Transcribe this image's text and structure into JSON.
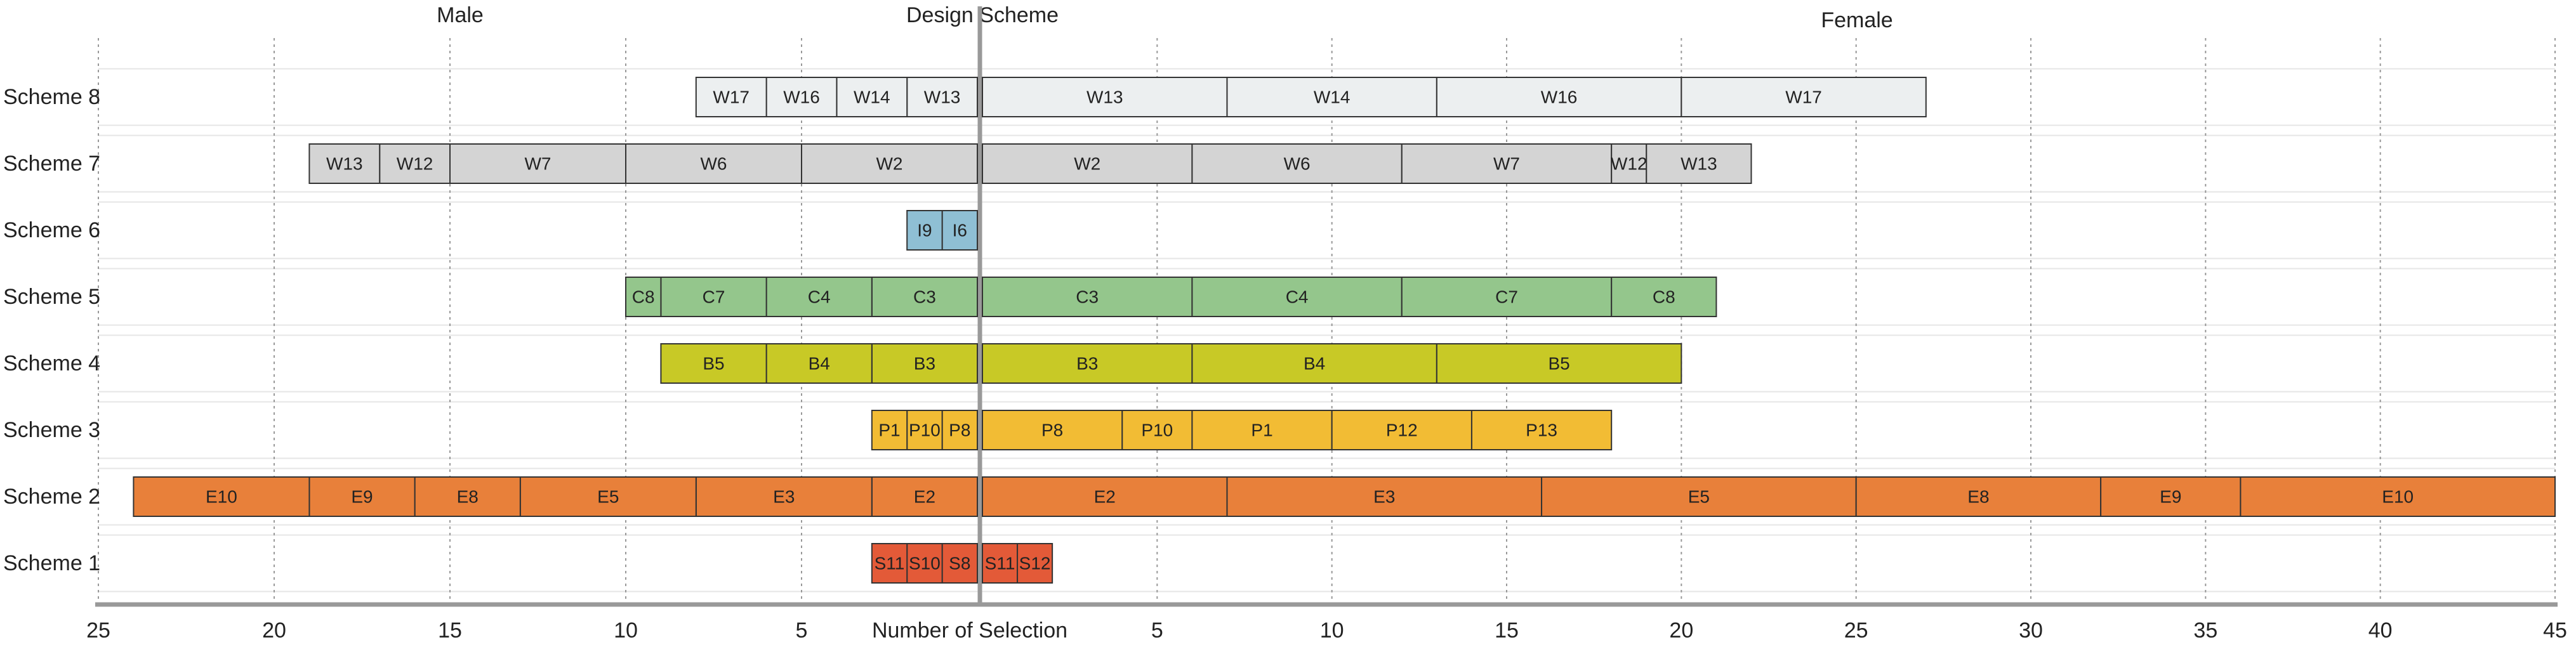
{
  "chart_data": {
    "type": "butterfly-stacked-bar",
    "title": "Design Scheme",
    "xlabel": "Number of Selection",
    "grid": true,
    "categories": [
      "Scheme 8",
      "Scheme 7",
      "Scheme 6",
      "Scheme 5",
      "Scheme 4",
      "Scheme 3",
      "Scheme 2",
      "Scheme 1"
    ],
    "colors": [
      "#eceff0",
      "#d4d4d4",
      "#8fbfd4",
      "#94c68c",
      "#c8c926",
      "#f2bc34",
      "#e8803a",
      "#e35a38"
    ],
    "panels": [
      {
        "label": "Male",
        "xlim": [
          25,
          0
        ],
        "xticks": [
          25,
          20,
          15,
          10,
          5
        ],
        "bars": [
          [
            {
              "name": "W13",
              "value": 2
            },
            {
              "name": "W14",
              "value": 2
            },
            {
              "name": "W16",
              "value": 2
            },
            {
              "name": "W17",
              "value": 2
            }
          ],
          [
            {
              "name": "W2",
              "value": 5
            },
            {
              "name": "W6",
              "value": 5
            },
            {
              "name": "W7",
              "value": 5
            },
            {
              "name": "W12",
              "value": 2
            },
            {
              "name": "W13",
              "value": 2
            }
          ],
          [
            {
              "name": "I6",
              "value": 1
            },
            {
              "name": "I9",
              "value": 1
            }
          ],
          [
            {
              "name": "C3",
              "value": 3
            },
            {
              "name": "C4",
              "value": 3
            },
            {
              "name": "C7",
              "value": 3
            },
            {
              "name": "C8",
              "value": 1
            }
          ],
          [
            {
              "name": "B3",
              "value": 3
            },
            {
              "name": "B4",
              "value": 3
            },
            {
              "name": "B5",
              "value": 3
            }
          ],
          [
            {
              "name": "P8",
              "value": 1
            },
            {
              "name": "P10",
              "value": 1
            },
            {
              "name": "P1",
              "value": 1
            }
          ],
          [
            {
              "name": "E2",
              "value": 3
            },
            {
              "name": "E3",
              "value": 5
            },
            {
              "name": "E5",
              "value": 5
            },
            {
              "name": "E8",
              "value": 3
            },
            {
              "name": "E9",
              "value": 3
            },
            {
              "name": "E10",
              "value": 5
            }
          ],
          [
            {
              "name": "S8",
              "value": 1
            },
            {
              "name": "S10",
              "value": 1
            },
            {
              "name": "S11",
              "value": 1
            }
          ]
        ]
      },
      {
        "label": "Female",
        "xlim": [
          0,
          45
        ],
        "xticks": [
          5,
          10,
          15,
          20,
          25,
          30,
          35,
          40,
          45
        ],
        "bars": [
          [
            {
              "name": "W13",
              "value": 7
            },
            {
              "name": "W14",
              "value": 6
            },
            {
              "name": "W16",
              "value": 7
            },
            {
              "name": "W17",
              "value": 7
            }
          ],
          [
            {
              "name": "W2",
              "value": 6
            },
            {
              "name": "W6",
              "value": 6
            },
            {
              "name": "W7",
              "value": 6
            },
            {
              "name": "W12",
              "value": 1
            },
            {
              "name": "W13",
              "value": 3
            }
          ],
          [],
          [
            {
              "name": "C3",
              "value": 6
            },
            {
              "name": "C4",
              "value": 6
            },
            {
              "name": "C7",
              "value": 6
            },
            {
              "name": "C8",
              "value": 3
            }
          ],
          [
            {
              "name": "B3",
              "value": 6
            },
            {
              "name": "B4",
              "value": 7
            },
            {
              "name": "B5",
              "value": 7
            }
          ],
          [
            {
              "name": "P8",
              "value": 4
            },
            {
              "name": "P10",
              "value": 2
            },
            {
              "name": "P1",
              "value": 4
            },
            {
              "name": "P12",
              "value": 4
            },
            {
              "name": "P13",
              "value": 4
            }
          ],
          [
            {
              "name": "E2",
              "value": 7
            },
            {
              "name": "E3",
              "value": 9
            },
            {
              "name": "E5",
              "value": 9
            },
            {
              "name": "E8",
              "value": 7
            },
            {
              "name": "E9",
              "value": 4
            },
            {
              "name": "E10",
              "value": 9
            }
          ],
          [
            {
              "name": "S11",
              "value": 1
            },
            {
              "name": "S12",
              "value": 1
            }
          ]
        ]
      }
    ]
  }
}
